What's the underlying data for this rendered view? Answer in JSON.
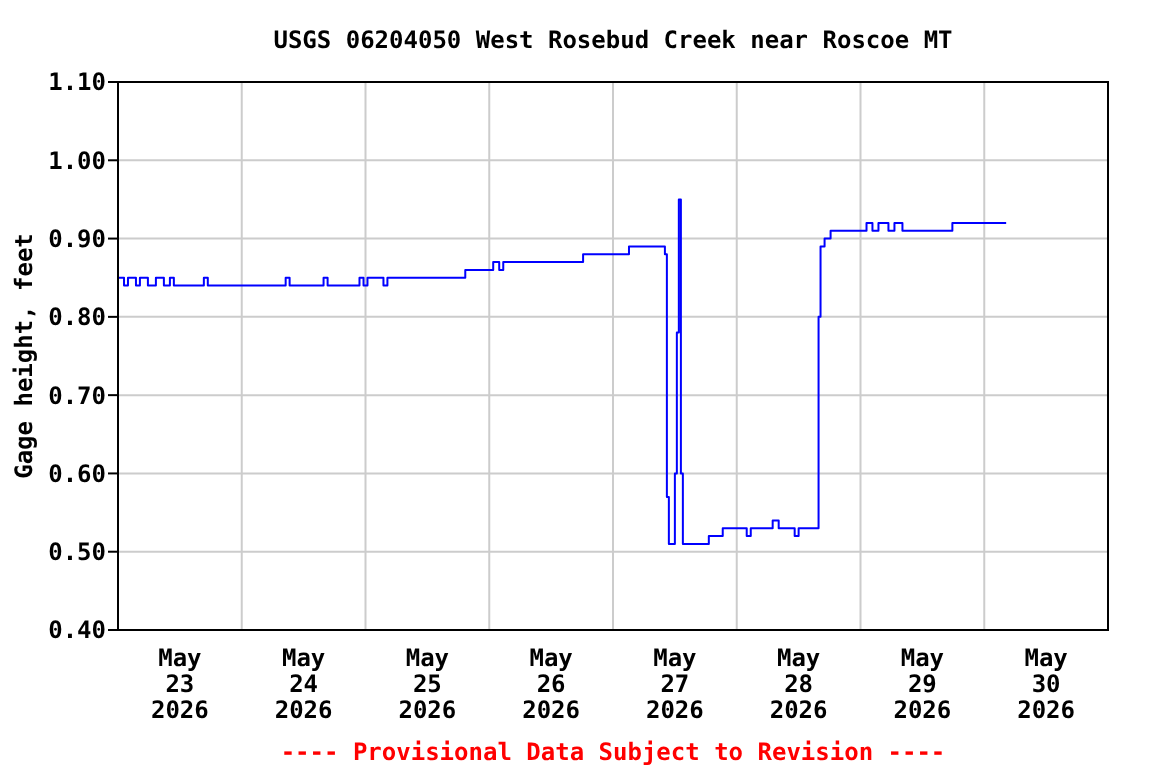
{
  "chart_data": {
    "type": "step",
    "title": "USGS 06204050 West Rosebud Creek near Roscoe MT",
    "ylabel": "Gage height, feet",
    "annotations": [
      "---- Provisional Data Subject to Revision ----"
    ],
    "x": [
      "2026-05-23T00:00",
      "2026-05-23T01:10",
      "2026-05-23T01:56",
      "2026-05-23T03:29",
      "2026-05-23T04:15",
      "2026-05-23T05:48",
      "2026-05-23T07:21",
      "2026-05-23T08:54",
      "2026-05-23T10:04",
      "2026-05-23T10:50",
      "2026-05-23T15:52",
      "2026-05-23T16:39",
      "2026-05-23T17:25",
      "2026-05-24T08:08",
      "2026-05-24T08:31",
      "2026-05-24T09:17",
      "2026-05-24T15:06",
      "2026-05-24T15:52",
      "2026-05-24T16:39",
      "2026-05-24T22:04",
      "2026-05-24T22:50",
      "2026-05-24T23:37",
      "2026-05-25T00:23",
      "2026-05-25T02:43",
      "2026-05-25T03:29",
      "2026-05-25T04:15",
      "2026-05-25T18:58",
      "2026-05-25T19:21",
      "2026-05-26T00:00",
      "2026-05-26T00:46",
      "2026-05-26T01:56",
      "2026-05-26T02:43",
      "2026-05-26T17:25",
      "2026-05-26T18:12",
      "2026-05-27T02:43",
      "2026-05-27T03:06",
      "2026-05-27T09:17",
      "2026-05-27T10:04",
      "2026-05-27T10:27",
      "2026-05-27T10:50",
      "2026-05-27T11:37",
      "2026-05-27T12:00",
      "2026-05-27T12:23",
      "2026-05-27T12:46",
      "2026-05-27T13:10",
      "2026-05-27T13:33",
      "2026-05-27T18:12",
      "2026-05-27T18:35",
      "2026-05-27T21:17",
      "2026-05-28T01:10",
      "2026-05-28T01:56",
      "2026-05-28T02:43",
      "2026-05-28T06:35",
      "2026-05-28T06:58",
      "2026-05-28T08:08",
      "2026-05-28T10:50",
      "2026-05-28T11:14",
      "2026-05-28T12:00",
      "2026-05-28T15:29",
      "2026-05-28T15:52",
      "2026-05-28T16:15",
      "2026-05-28T17:02",
      "2026-05-28T18:12",
      "2026-05-28T19:45",
      "2026-05-29T01:10",
      "2026-05-29T02:19",
      "2026-05-29T03:29",
      "2026-05-29T05:25",
      "2026-05-29T06:35",
      "2026-05-29T08:08",
      "2026-05-29T17:25",
      "2026-05-29T17:49",
      "2026-05-30T04:15"
    ],
    "series": [
      {
        "color": "#0000ff",
        "values": [
          0.85,
          0.84,
          0.85,
          0.84,
          0.85,
          0.84,
          0.85,
          0.84,
          0.85,
          0.84,
          0.84,
          0.85,
          0.84,
          0.84,
          0.85,
          0.84,
          0.84,
          0.85,
          0.84,
          0.84,
          0.85,
          0.84,
          0.85,
          0.85,
          0.84,
          0.85,
          0.85,
          0.86,
          0.86,
          0.87,
          0.86,
          0.87,
          0.87,
          0.88,
          0.88,
          0.89,
          0.89,
          0.88,
          0.57,
          0.51,
          0.51,
          0.6,
          0.78,
          0.95,
          0.6,
          0.51,
          0.51,
          0.52,
          0.53,
          0.53,
          0.52,
          0.53,
          0.53,
          0.54,
          0.53,
          0.53,
          0.52,
          0.53,
          0.53,
          0.8,
          0.89,
          0.9,
          0.91,
          0.91,
          0.92,
          0.91,
          0.92,
          0.91,
          0.92,
          0.91,
          0.91,
          0.92,
          0.92
        ]
      }
    ],
    "xlim": [
      "2026-05-23T00:00",
      "2026-05-31T00:00"
    ],
    "xticks": [
      {
        "value": "2026-05-23T12:00",
        "label": "May\n23\n2026"
      },
      {
        "value": "2026-05-24T12:00",
        "label": "May\n24\n2026"
      },
      {
        "value": "2026-05-25T12:00",
        "label": "May\n25\n2026"
      },
      {
        "value": "2026-05-26T12:00",
        "label": "May\n26\n2026"
      },
      {
        "value": "2026-05-27T12:00",
        "label": "May\n27\n2026"
      },
      {
        "value": "2026-05-28T12:00",
        "label": "May\n28\n2026"
      },
      {
        "value": "2026-05-29T12:00",
        "label": "May\n29\n2026"
      },
      {
        "value": "2026-05-30T12:00",
        "label": "May\n30\n2026"
      },
      {
        "value": "2026-05-24T00:00",
        "label": null
      },
      {
        "value": "2026-05-25T00:00",
        "label": null
      },
      {
        "value": "2026-05-26T00:00",
        "label": null
      },
      {
        "value": "2026-05-27T00:00",
        "label": null
      },
      {
        "value": "2026-05-28T00:00",
        "label": null
      },
      {
        "value": "2026-05-29T00:00",
        "label": null
      },
      {
        "value": "2026-05-30T00:00",
        "label": null
      }
    ],
    "ylim": [
      0.4,
      1.1
    ],
    "yticks": [
      {
        "value": 0.4,
        "label": "0.40"
      },
      {
        "value": 0.5,
        "label": "0.50"
      },
      {
        "value": 0.6,
        "label": "0.60"
      },
      {
        "value": 0.7,
        "label": "0.70"
      },
      {
        "value": 0.8,
        "label": "0.80"
      },
      {
        "value": 0.9,
        "label": "0.90"
      },
      {
        "value": 1.0,
        "label": "1.00"
      },
      {
        "value": 1.1,
        "label": "1.10"
      }
    ],
    "grid": true
  }
}
